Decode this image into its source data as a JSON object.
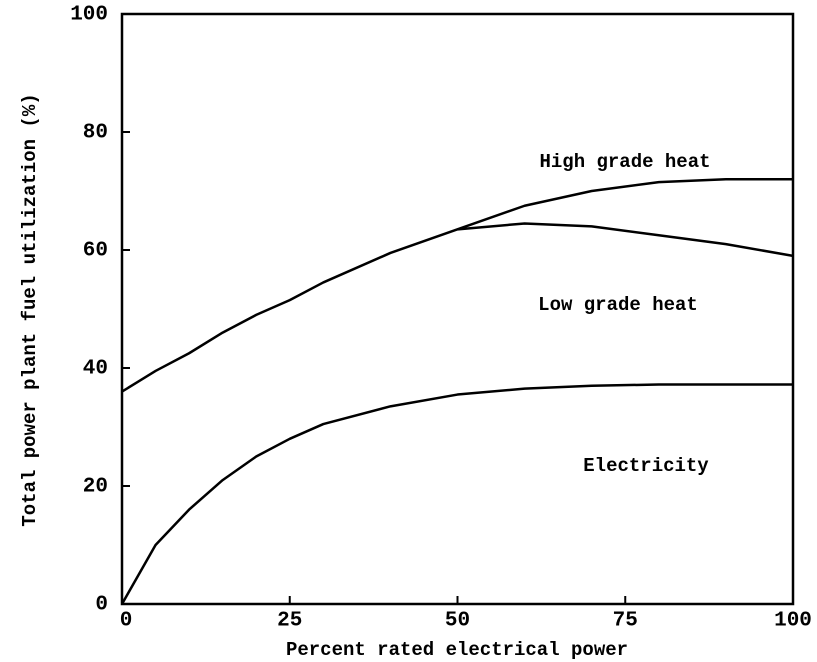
{
  "chart_data": {
    "type": "line",
    "xlabel": "Percent rated electrical power",
    "ylabel": "Total power plant fuel utilization (%)",
    "x": [
      0,
      5,
      10,
      15,
      20,
      25,
      30,
      40,
      50,
      60,
      70,
      80,
      90,
      100
    ],
    "series": [
      {
        "name": "Electricity",
        "color": "#000000",
        "values": [
          0,
          10,
          16,
          21,
          25,
          28,
          30.5,
          33.5,
          35.5,
          36.5,
          37,
          37.2,
          37.2,
          37.2
        ]
      },
      {
        "name": "Low grade heat",
        "color": "#000000",
        "values": [
          36,
          39.5,
          42.5,
          46,
          49,
          51.5,
          54.5,
          59.5,
          63.5,
          64.5,
          64,
          62.5,
          61,
          59
        ]
      },
      {
        "name": "High grade heat",
        "color": "#000000",
        "values": [
          null,
          null,
          null,
          null,
          null,
          null,
          null,
          null,
          63.5,
          67.5,
          70,
          71.5,
          72,
          72
        ]
      }
    ],
    "annotations": [
      "High grade heat",
      "Low grade heat",
      "Electricity"
    ],
    "xlim": [
      0,
      100
    ],
    "xticks": [
      0,
      25,
      50,
      75,
      100
    ],
    "ylim": [
      0,
      100
    ],
    "yticks": [
      0,
      20,
      40,
      60,
      80,
      100
    ],
    "grid": false
  }
}
